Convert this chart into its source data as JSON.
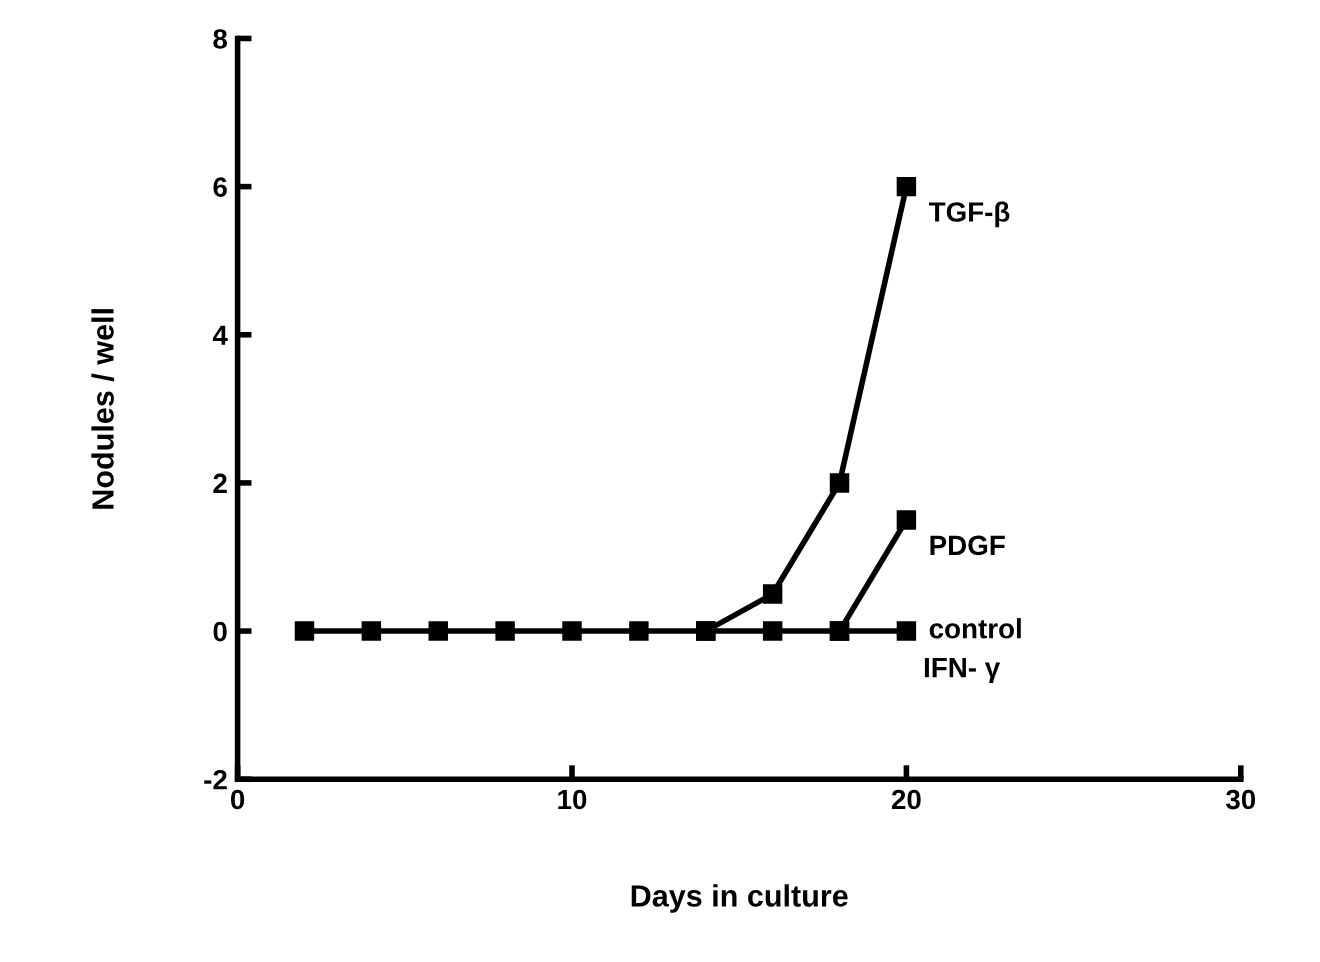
{
  "chart_data": {
    "type": "line",
    "xlabel": "Days in culture",
    "ylabel": "Nodules / well",
    "xlim": [
      0,
      30
    ],
    "ylim": [
      -2,
      8
    ],
    "xticks": [
      0,
      10,
      20,
      30
    ],
    "yticks": [
      -2,
      0,
      2,
      4,
      6,
      8
    ],
    "grid": false,
    "legend": false,
    "marker": "square",
    "line_style": "solid",
    "series": [
      {
        "name": "TGF-β",
        "color": "#000000",
        "x": [
          14,
          16,
          18,
          20
        ],
        "values": [
          0,
          0.5,
          2,
          6
        ]
      },
      {
        "name": "PDGF",
        "color": "#000000",
        "x": [
          18,
          20
        ],
        "values": [
          0,
          1.5
        ]
      },
      {
        "name": "control",
        "color": "#000000",
        "x": [
          2,
          4,
          6,
          8,
          10,
          12,
          14,
          16,
          18,
          20
        ],
        "values": [
          0,
          0,
          0,
          0,
          0,
          0,
          0,
          0,
          0,
          0
        ]
      }
    ],
    "annotations": [
      {
        "text": "IFN- γ",
        "x": 20,
        "y": 0
      }
    ]
  }
}
